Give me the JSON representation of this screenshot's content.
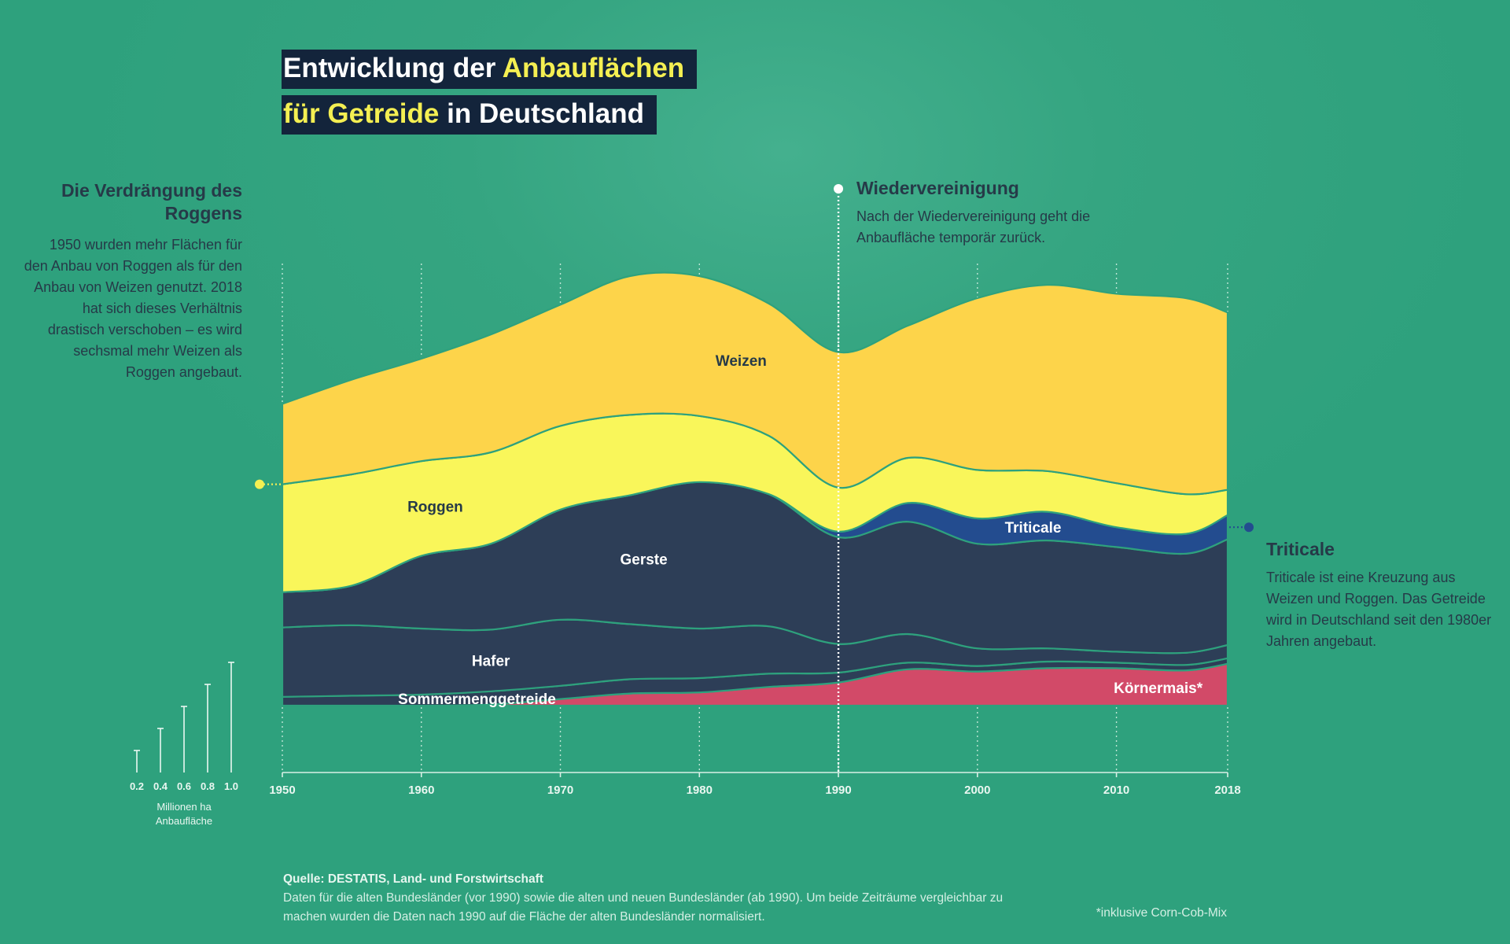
{
  "title": {
    "line1_prefix": "Entwicklung der ",
    "line1_highlight": "Anbauflächen",
    "line2_highlight": "für Getreide",
    "line2_suffix": " in Deutschland"
  },
  "annotations": {
    "roggen": {
      "heading": "Die Verdrängung des Roggens",
      "text": "1950 wurden mehr Flächen für den Anbau von Roggen als für den Anbau von Weizen genutzt. 2018 hat sich dieses Verhältnis drastisch verschoben – es wird sechsmal mehr Weizen als Roggen angebaut."
    },
    "reunification": {
      "heading": "Wiedervereinigung",
      "text": "Nach der Wiedervereinigung geht die Anbaufläche temporär zurück."
    },
    "triticale": {
      "heading": "Triticale",
      "text": "Triticale ist eine Kreuzung aus Weizen und Roggen. Das Getreide wird in Deutschland seit den 1980er Jahren angebaut."
    }
  },
  "scale": {
    "ticks": [
      "0.2",
      "0.4",
      "0.6",
      "0.8",
      "1.0"
    ],
    "values": [
      0.2,
      0.4,
      0.6,
      0.8,
      1.0
    ],
    "caption": "Millionen ha Anbaufläche"
  },
  "footer": {
    "source": "Quelle: DESTATIS, Land- und Forstwirtschaft",
    "note": "Daten für die alten Bundesländer (vor 1990) sowie die alten und neuen Bundesländer (ab 1990). Um beide Zeiträume vergleichbar zu machen wurden die Daten nach 1990 auf die Fläche der alten Bundesländer normalisiert.",
    "footnote": "*inklusive Corn-Cob-Mix"
  },
  "colors": {
    "background": "#2ea17d",
    "weizen": "#fdd44a",
    "roggen": "#f9f65a",
    "gerste": "#2d3e57",
    "hafer": "#2d3e57",
    "sommermenggetreide": "#2d3e57",
    "triticale": "#234c8f",
    "koernermais": "#d24a68",
    "separator": "#2ea17d",
    "title_bg": "#13243b",
    "highlight": "#f4ef52"
  },
  "chart_data": {
    "type": "area",
    "subtype": "streamgraph",
    "unit": "Millionen ha",
    "x": [
      1950,
      1955,
      1960,
      1965,
      1970,
      1975,
      1980,
      1985,
      1990,
      1995,
      2000,
      2005,
      2010,
      2015,
      2018
    ],
    "xticks": [
      "1950",
      "1960",
      "1970",
      "1980",
      "1990",
      "2000",
      "2010",
      "2018"
    ],
    "xtick_values": [
      1950,
      1960,
      1970,
      1980,
      1990,
      2000,
      2010,
      2018
    ],
    "series": [
      {
        "name": "Körnermais*",
        "values": [
          0,
          0,
          0,
          0.01,
          0.06,
          0.11,
          0.12,
          0.17,
          0.21,
          0.33,
          0.31,
          0.34,
          0.34,
          0.32,
          0.38
        ]
      },
      {
        "name": "Sommermenggetreide",
        "values": [
          0.08,
          0.09,
          0.1,
          0.12,
          0.12,
          0.13,
          0.13,
          0.12,
          0.09,
          0.06,
          0.05,
          0.06,
          0.05,
          0.05,
          0.05
        ]
      },
      {
        "name": "Hafer",
        "values": [
          0.63,
          0.64,
          0.6,
          0.56,
          0.6,
          0.5,
          0.45,
          0.43,
          0.26,
          0.26,
          0.16,
          0.12,
          0.1,
          0.11,
          0.12
        ]
      },
      {
        "name": "Gerste",
        "values": [
          0.32,
          0.36,
          0.66,
          0.78,
          1.0,
          1.17,
          1.33,
          1.2,
          0.97,
          1.02,
          0.95,
          0.98,
          0.95,
          0.9,
          0.96
        ]
      },
      {
        "name": "Triticale",
        "values": [
          0,
          0,
          0,
          0,
          0,
          0,
          0,
          0,
          0.05,
          0.17,
          0.23,
          0.26,
          0.18,
          0.18,
          0.22
        ]
      },
      {
        "name": "Roggen",
        "values": [
          0.98,
          1.01,
          0.86,
          0.83,
          0.76,
          0.73,
          0.6,
          0.53,
          0.4,
          0.41,
          0.44,
          0.37,
          0.4,
          0.36,
          0.23
        ]
      },
      {
        "name": "Weizen",
        "values": [
          0.73,
          0.86,
          0.93,
          1.07,
          1.1,
          1.26,
          1.27,
          1.2,
          1.23,
          1.2,
          1.56,
          1.69,
          1.72,
          1.78,
          1.61
        ]
      }
    ]
  }
}
